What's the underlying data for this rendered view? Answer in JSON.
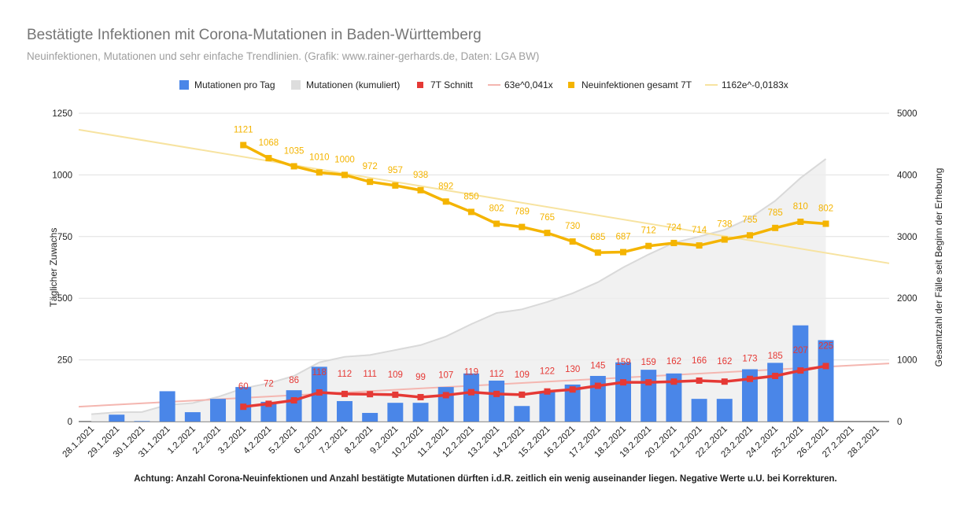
{
  "title": "Bestätigte Infektionen mit Corona-Mutationen in Baden-Württemberg",
  "subtitle": "Neuinfektionen, Mutationen und sehr einfache Trendlinien.  (Grafik: www.rainer-gerhards.de, Daten: LGA BW)",
  "footnote": "Achtung: Anzahl Corona-Neuinfektionen und Anzahl bestätigte Mutationen dürften i.d.R. zeitlich ein wenig auseinander liegen. Negative Werte u.U. bei Korrekturen.",
  "colors": {
    "bars": "#4a86e8",
    "cumulative_fill": "#eeeeee",
    "cumulative_line": "#d9d9d9",
    "avg7": "#e53935",
    "trend_red": "#f4b6b0",
    "new7": "#f4b400",
    "trend_yellow": "#f7e3a0",
    "grid": "#e0e0e0"
  },
  "chart_data": {
    "type": "bar",
    "title": "Bestätigte Infektionen mit Corona-Mutationen in Baden-Württemberg",
    "subtitle": "Neuinfektionen, Mutationen und sehr einfache Trendlinien.  (Grafik: www.rainer-gerhards.de, Daten: LGA BW)",
    "legend_position": "top",
    "grid": true,
    "categories": [
      "28.1.2021",
      "29.1.2021",
      "30.1.2021",
      "31.1.2021",
      "1.2.2021",
      "2.2.2021",
      "3.2.2021",
      "4.2.2021",
      "5.2.2021",
      "6.2.2021",
      "7.2.2021",
      "8.2.2021",
      "9.2.2021",
      "10.2.2021",
      "11.2.2021",
      "12.2.2021",
      "13.2.2021",
      "14.2.2021",
      "15.2.2021",
      "16.2.2021",
      "17.2.2021",
      "18.2.2021",
      "19.2.2021",
      "20.2.2021",
      "21.2.2021",
      "22.2.2021",
      "23.2.2021",
      "24.2.2021",
      "25.2.2021",
      "26.2.2021",
      "27.2.2021",
      "28.2.2021"
    ],
    "y_left": {
      "label": "Täglicher Zuwachs",
      "range": [
        0,
        1250
      ],
      "ticks": [
        "0",
        "250",
        "500",
        "750",
        "1000",
        "1250"
      ]
    },
    "y_right": {
      "label": "Gesamtzahl der Fälle seit Beginn der Erhebung",
      "range": [
        0,
        5000
      ],
      "ticks": [
        "0",
        "1000",
        "2000",
        "3000",
        "4000",
        "5000"
      ]
    },
    "series": [
      {
        "name": "Mutationen pro Tag",
        "type": "bar",
        "axis": "left",
        "values": [
          0,
          28,
          2,
          123,
          38,
          92,
          140,
          80,
          127,
          222,
          83,
          35,
          76,
          76,
          140,
          195,
          166,
          63,
          122,
          150,
          185,
          240,
          210,
          195,
          92,
          92,
          212,
          238,
          390,
          330,
          null,
          null
        ]
      },
      {
        "name": "Mutationen (kumuliert)",
        "type": "area",
        "axis": "right",
        "values": [
          120,
          150,
          155,
          270,
          300,
          400,
          540,
          620,
          740,
          960,
          1050,
          1080,
          1160,
          1240,
          1380,
          1580,
          1760,
          1820,
          1940,
          2080,
          2260,
          2500,
          2710,
          2900,
          3000,
          3110,
          3300,
          3580,
          3950,
          4260,
          null,
          null
        ]
      },
      {
        "name": "7T Schnitt",
        "type": "line",
        "axis": "left",
        "values": [
          null,
          null,
          null,
          null,
          null,
          null,
          60,
          72,
          86,
          118,
          112,
          111,
          109,
          99,
          107,
          119,
          112,
          109,
          122,
          130,
          145,
          159,
          159,
          162,
          166,
          162,
          173,
          185,
          207,
          225,
          null,
          null
        ],
        "labels": [
          "",
          "",
          "",
          "",
          "",
          "",
          "60",
          "72",
          "86",
          "118",
          "112",
          "111",
          "109",
          "99",
          "107",
          "119",
          "112",
          "109",
          "122",
          "130",
          "145",
          "159",
          "159",
          "162",
          "166",
          "162",
          "173",
          "185",
          "207",
          "225",
          "",
          ""
        ]
      },
      {
        "name": "63e^0,041x",
        "type": "trend",
        "axis": "left",
        "from": [
          0,
          63
        ],
        "to": [
          31,
          233
        ]
      },
      {
        "name": "Neuinfektionen gesamt 7T",
        "type": "line",
        "axis": "left",
        "values": [
          null,
          null,
          null,
          null,
          null,
          null,
          1121,
          1068,
          1035,
          1010,
          1000,
          972,
          957,
          938,
          892,
          850,
          802,
          789,
          765,
          730,
          685,
          687,
          712,
          724,
          714,
          738,
          755,
          785,
          810,
          802,
          null,
          null
        ],
        "labels": [
          "",
          "",
          "",
          "",
          "",
          "",
          "1121",
          "1068",
          "1035",
          "1010",
          "1000",
          "972",
          "957",
          "938",
          "892",
          "850",
          "802",
          "789",
          "765",
          "730",
          "685",
          "687",
          "712",
          "724",
          "714",
          "738",
          "755",
          "785",
          "810",
          "802",
          "",
          ""
        ]
      },
      {
        "name": "1162e^-0,0183x",
        "type": "trend",
        "axis": "left",
        "from": [
          0,
          1175
        ],
        "to": [
          31,
          650
        ]
      }
    ]
  }
}
